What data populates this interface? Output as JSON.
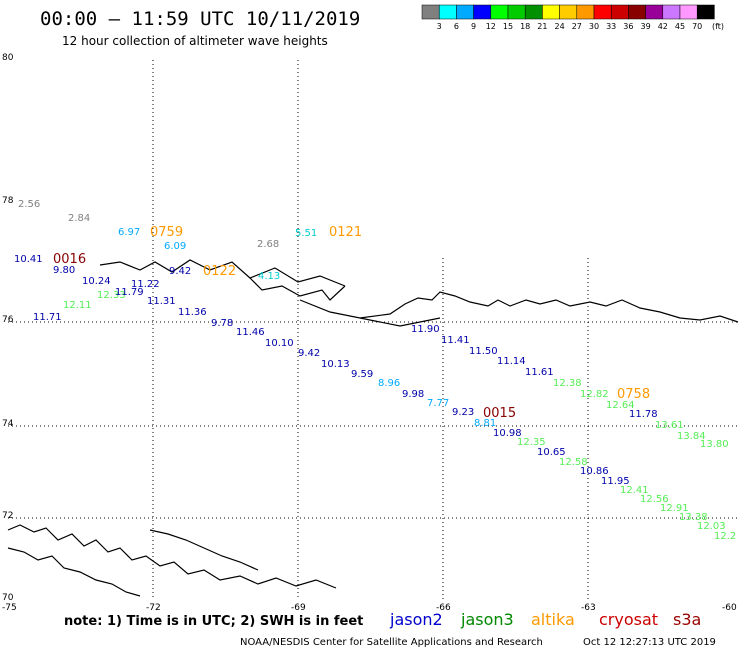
{
  "header": {
    "title": "00:00 – 11:59 UTC 10/11/2019",
    "subtitle": "12 hour collection of altimeter wave heights"
  },
  "legend": {
    "unit": "(ft)",
    "colors": [
      "#808080",
      "#00ffff",
      "#00aaff",
      "#0000ff",
      "#00ff00",
      "#00cc00",
      "#009000",
      "#ffff00",
      "#ffcc00",
      "#ff9900",
      "#ff0000",
      "#cc0000",
      "#880000",
      "#990099",
      "#cc77ff",
      "#ff99ff",
      "#000000"
    ],
    "labels": [
      "3",
      "6",
      "9",
      "12",
      "15",
      "18",
      "21",
      "24",
      "27",
      "30",
      "33",
      "36",
      "39",
      "42",
      "45",
      "70"
    ]
  },
  "axes": {
    "lat_labels": [
      "80",
      "78",
      "76",
      "74",
      "72",
      "70"
    ],
    "lon_labels": [
      "-75",
      "-72",
      "-69",
      "-66",
      "-63",
      "-60"
    ]
  },
  "footer": {
    "note": "note: 1) Time is in UTC; 2) SWH is in feet",
    "credit": "NOAA/NESDIS Center for Satellite Applications and Research",
    "timestamp": "Oct 12 12:27:13 UTC 2019"
  },
  "satellites": [
    {
      "name": "jason2",
      "color": "#0000cc"
    },
    {
      "name": "jason3",
      "color": "#008800"
    },
    {
      "name": "altika",
      "color": "#ff9900"
    },
    {
      "name": "cryosat",
      "color": "#cc0000"
    },
    {
      "name": "s3a",
      "color": "#990000"
    }
  ],
  "time_labels": [
    {
      "text": "0016",
      "color": "#880000"
    },
    {
      "text": "0759",
      "color": "#ff9900"
    },
    {
      "text": "0121",
      "color": "#ff9900"
    },
    {
      "text": "0122",
      "color": "#ff9900"
    },
    {
      "text": "0015",
      "color": "#880000"
    },
    {
      "text": "0758",
      "color": "#ff9900"
    }
  ],
  "observations": [
    {
      "v": "2.56",
      "c": "#808080"
    },
    {
      "v": "2.84",
      "c": "#808080"
    },
    {
      "v": "6.97",
      "c": "#00aaff"
    },
    {
      "v": "6.09",
      "c": "#00aaff"
    },
    {
      "v": "2.68",
      "c": "#808080"
    },
    {
      "v": "5.51",
      "c": "#00cccc"
    },
    {
      "v": "10.41",
      "c": "#0000aa"
    },
    {
      "v": "9.80",
      "c": "#0000aa"
    },
    {
      "v": "9.42",
      "c": "#0000aa"
    },
    {
      "v": "4.13",
      "c": "#00cccc"
    },
    {
      "v": "10.24",
      "c": "#0000aa"
    },
    {
      "v": "11.22",
      "c": "#0000aa"
    },
    {
      "v": "12.33",
      "c": "#55ee55"
    },
    {
      "v": "11.79",
      "c": "#0000aa"
    },
    {
      "v": "12.11",
      "c": "#55ee55"
    },
    {
      "v": "11.31",
      "c": "#0000aa"
    },
    {
      "v": "11.71",
      "c": "#0000aa"
    },
    {
      "v": "11.36",
      "c": "#0000aa"
    },
    {
      "v": "9.78",
      "c": "#0000aa"
    },
    {
      "v": "11.46",
      "c": "#0000aa"
    },
    {
      "v": "10.10",
      "c": "#0000aa"
    },
    {
      "v": "9.42",
      "c": "#0000aa"
    },
    {
      "v": "10.13",
      "c": "#0000aa"
    },
    {
      "v": "9.59",
      "c": "#0000aa"
    },
    {
      "v": "8.96",
      "c": "#00aaff"
    },
    {
      "v": "9.98",
      "c": "#0000aa"
    },
    {
      "v": "7.77",
      "c": "#00aaff"
    },
    {
      "v": "9.23",
      "c": "#0000aa"
    },
    {
      "v": "8.81",
      "c": "#00aaff"
    },
    {
      "v": "10.98",
      "c": "#0000aa"
    },
    {
      "v": "11.90",
      "c": "#0000aa"
    },
    {
      "v": "11.41",
      "c": "#0000aa"
    },
    {
      "v": "11.50",
      "c": "#0000aa"
    },
    {
      "v": "11.14",
      "c": "#0000aa"
    },
    {
      "v": "11.61",
      "c": "#0000aa"
    },
    {
      "v": "12.38",
      "c": "#55ee55"
    },
    {
      "v": "12.82",
      "c": "#55ee55"
    },
    {
      "v": "12.64",
      "c": "#55ee55"
    },
    {
      "v": "11.78",
      "c": "#0000aa"
    },
    {
      "v": "13.61",
      "c": "#55ee55"
    },
    {
      "v": "13.84",
      "c": "#55ee55"
    },
    {
      "v": "13.80",
      "c": "#55ee55"
    },
    {
      "v": "12.35",
      "c": "#55ee55"
    },
    {
      "v": "10.65",
      "c": "#0000aa"
    },
    {
      "v": "12.58",
      "c": "#55ee55"
    },
    {
      "v": "10.86",
      "c": "#0000aa"
    },
    {
      "v": "11.95",
      "c": "#0000aa"
    },
    {
      "v": "12.41",
      "c": "#55ee55"
    },
    {
      "v": "12.56",
      "c": "#55ee55"
    },
    {
      "v": "12.91",
      "c": "#55ee55"
    },
    {
      "v": "13.38",
      "c": "#55ee55"
    },
    {
      "v": "12.03",
      "c": "#55ee55"
    },
    {
      "v": "12.2",
      "c": "#55ee55"
    }
  ]
}
